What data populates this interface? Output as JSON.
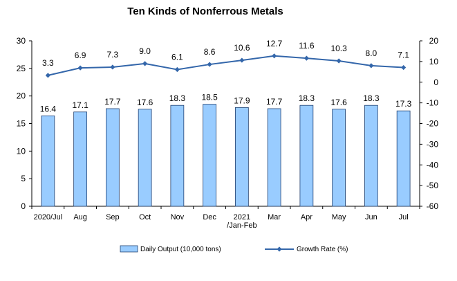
{
  "chart_data": {
    "type": "bar",
    "title": "Ten Kinds of Nonferrous Metals",
    "categories": [
      [
        "2020/Jul"
      ],
      [
        "Aug"
      ],
      [
        "Sep"
      ],
      [
        "Oct"
      ],
      [
        "Nov"
      ],
      [
        "Dec"
      ],
      [
        "2021",
        "/Jan-Feb"
      ],
      [
        "Mar"
      ],
      [
        "Apr"
      ],
      [
        "May"
      ],
      [
        "Jun"
      ],
      [
        "Jul"
      ]
    ],
    "series": [
      {
        "name": "Daily Output (10,000 tons)",
        "type": "bar",
        "axis": "left",
        "color": "#99ccff",
        "values": [
          16.4,
          17.1,
          17.7,
          17.6,
          18.3,
          18.5,
          17.9,
          17.7,
          18.3,
          17.6,
          18.3,
          17.3
        ]
      },
      {
        "name": "Growth Rate (%)",
        "type": "line",
        "axis": "right",
        "color": "#3366aa",
        "marker": "diamond",
        "values": [
          3.3,
          6.9,
          7.3,
          9.0,
          6.1,
          8.6,
          10.6,
          12.7,
          11.6,
          10.3,
          8.0,
          7.1
        ]
      }
    ],
    "y_left": {
      "min": 0,
      "max": 30,
      "step": 5
    },
    "y_right": {
      "min": -60,
      "max": 20,
      "step": 10
    },
    "grid": false,
    "legend": "bottom"
  }
}
